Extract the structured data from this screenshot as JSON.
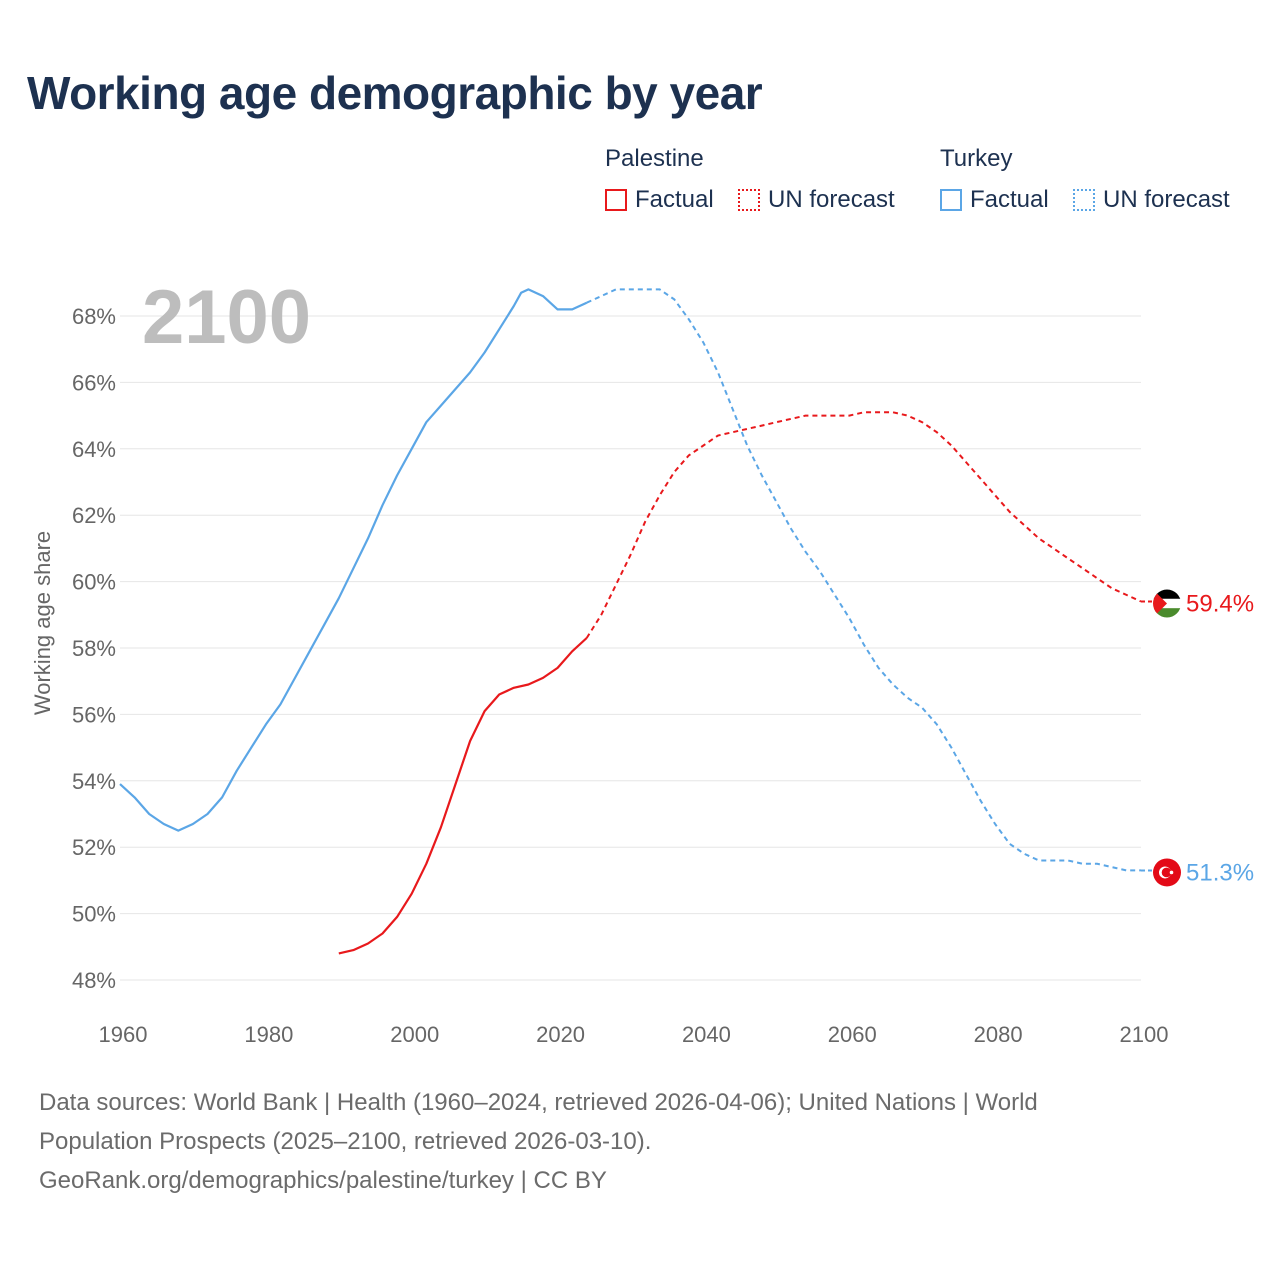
{
  "title": "Working age demographic by year",
  "legend": {
    "groups": [
      {
        "name": "Palestine",
        "color": "#e8191c",
        "factual_label": "Factual",
        "forecast_label": "UN forecast"
      },
      {
        "name": "Turkey",
        "color": "#5ba6e6",
        "factual_label": "Factual",
        "forecast_label": "UN forecast"
      }
    ]
  },
  "year_display": "2100",
  "footer": {
    "line1": "Data sources: World Bank | Health (1960–2024, retrieved 2026-04-06); United Nations | World",
    "line2": "Population Prospects (2025–2100, retrieved 2026-03-10).",
    "line3": "GeoRank.org/demographics/palestine/turkey | CC BY"
  },
  "chart_data": {
    "type": "line",
    "title": "Working age demographic by year",
    "xlabel": "",
    "ylabel": "Working age share",
    "xlim": [
      1960,
      2100
    ],
    "ylim": [
      47.5,
      69.5
    ],
    "x_ticks": [
      1960,
      1980,
      2000,
      2020,
      2040,
      2060,
      2080,
      2100
    ],
    "y_ticks": [
      48,
      50,
      52,
      54,
      56,
      58,
      60,
      62,
      64,
      66,
      68
    ],
    "y_tick_labels": [
      "48%",
      "50%",
      "52%",
      "54%",
      "56%",
      "58%",
      "60%",
      "62%",
      "64%",
      "66%",
      "68%"
    ],
    "x_tick_labels": [
      "1960",
      "1980",
      "2000",
      "2020",
      "2040",
      "2060",
      "2080",
      "2100"
    ],
    "grid": true,
    "factual_end_year": 2024,
    "series": [
      {
        "name": "Turkey",
        "color": "#5ba6e6",
        "end_label": "51.3%",
        "flag": "turkey-flag",
        "x": [
          1960,
          1962,
          1964,
          1966,
          1968,
          1970,
          1972,
          1974,
          1976,
          1978,
          1980,
          1982,
          1984,
          1986,
          1988,
          1990,
          1992,
          1994,
          1996,
          1998,
          2000,
          2002,
          2004,
          2006,
          2008,
          2010,
          2012,
          2014,
          2015,
          2016,
          2018,
          2020,
          2022,
          2024,
          2026,
          2028,
          2030,
          2032,
          2034,
          2036,
          2038,
          2040,
          2042,
          2044,
          2046,
          2048,
          2050,
          2052,
          2054,
          2056,
          2058,
          2060,
          2062,
          2064,
          2066,
          2068,
          2070,
          2072,
          2074,
          2076,
          2078,
          2080,
          2082,
          2084,
          2086,
          2088,
          2090,
          2092,
          2094,
          2096,
          2098,
          2100
        ],
        "y": [
          53.9,
          53.5,
          53.0,
          52.7,
          52.5,
          52.7,
          53.0,
          53.5,
          54.3,
          55.0,
          55.7,
          56.3,
          57.1,
          57.9,
          58.7,
          59.5,
          60.4,
          61.3,
          62.3,
          63.2,
          64.0,
          64.8,
          65.3,
          65.8,
          66.3,
          66.9,
          67.6,
          68.3,
          68.7,
          68.8,
          68.6,
          68.2,
          68.2,
          68.4,
          68.6,
          68.8,
          68.8,
          68.8,
          68.8,
          68.5,
          67.9,
          67.2,
          66.3,
          65.2,
          64.1,
          63.2,
          62.4,
          61.6,
          60.9,
          60.3,
          59.6,
          58.9,
          58.1,
          57.4,
          56.9,
          56.5,
          56.2,
          55.7,
          55.0,
          54.2,
          53.4,
          52.7,
          52.1,
          51.8,
          51.6,
          51.6,
          51.6,
          51.5,
          51.5,
          51.4,
          51.3,
          51.3
        ]
      },
      {
        "name": "Palestine",
        "color": "#e8191c",
        "end_label": "59.4%",
        "flag": "palestine-flag",
        "x": [
          1990,
          1992,
          1994,
          1996,
          1998,
          2000,
          2002,
          2004,
          2006,
          2008,
          2010,
          2012,
          2014,
          2016,
          2018,
          2020,
          2022,
          2024,
          2026,
          2028,
          2030,
          2032,
          2034,
          2036,
          2038,
          2040,
          2042,
          2044,
          2046,
          2048,
          2050,
          2052,
          2054,
          2056,
          2058,
          2060,
          2062,
          2064,
          2066,
          2068,
          2070,
          2072,
          2074,
          2076,
          2078,
          2080,
          2082,
          2084,
          2086,
          2088,
          2090,
          2092,
          2094,
          2096,
          2098,
          2100
        ],
        "y": [
          48.8,
          48.9,
          49.1,
          49.4,
          49.9,
          50.6,
          51.5,
          52.6,
          53.9,
          55.2,
          56.1,
          56.6,
          56.8,
          56.9,
          57.1,
          57.4,
          57.9,
          58.3,
          59.0,
          59.9,
          60.8,
          61.8,
          62.6,
          63.3,
          63.8,
          64.1,
          64.4,
          64.5,
          64.6,
          64.7,
          64.8,
          64.9,
          65.0,
          65.0,
          65.0,
          65.0,
          65.1,
          65.1,
          65.1,
          65.0,
          64.8,
          64.5,
          64.1,
          63.6,
          63.1,
          62.6,
          62.1,
          61.7,
          61.3,
          61.0,
          60.7,
          60.4,
          60.1,
          59.8,
          59.6,
          59.4
        ]
      }
    ]
  }
}
